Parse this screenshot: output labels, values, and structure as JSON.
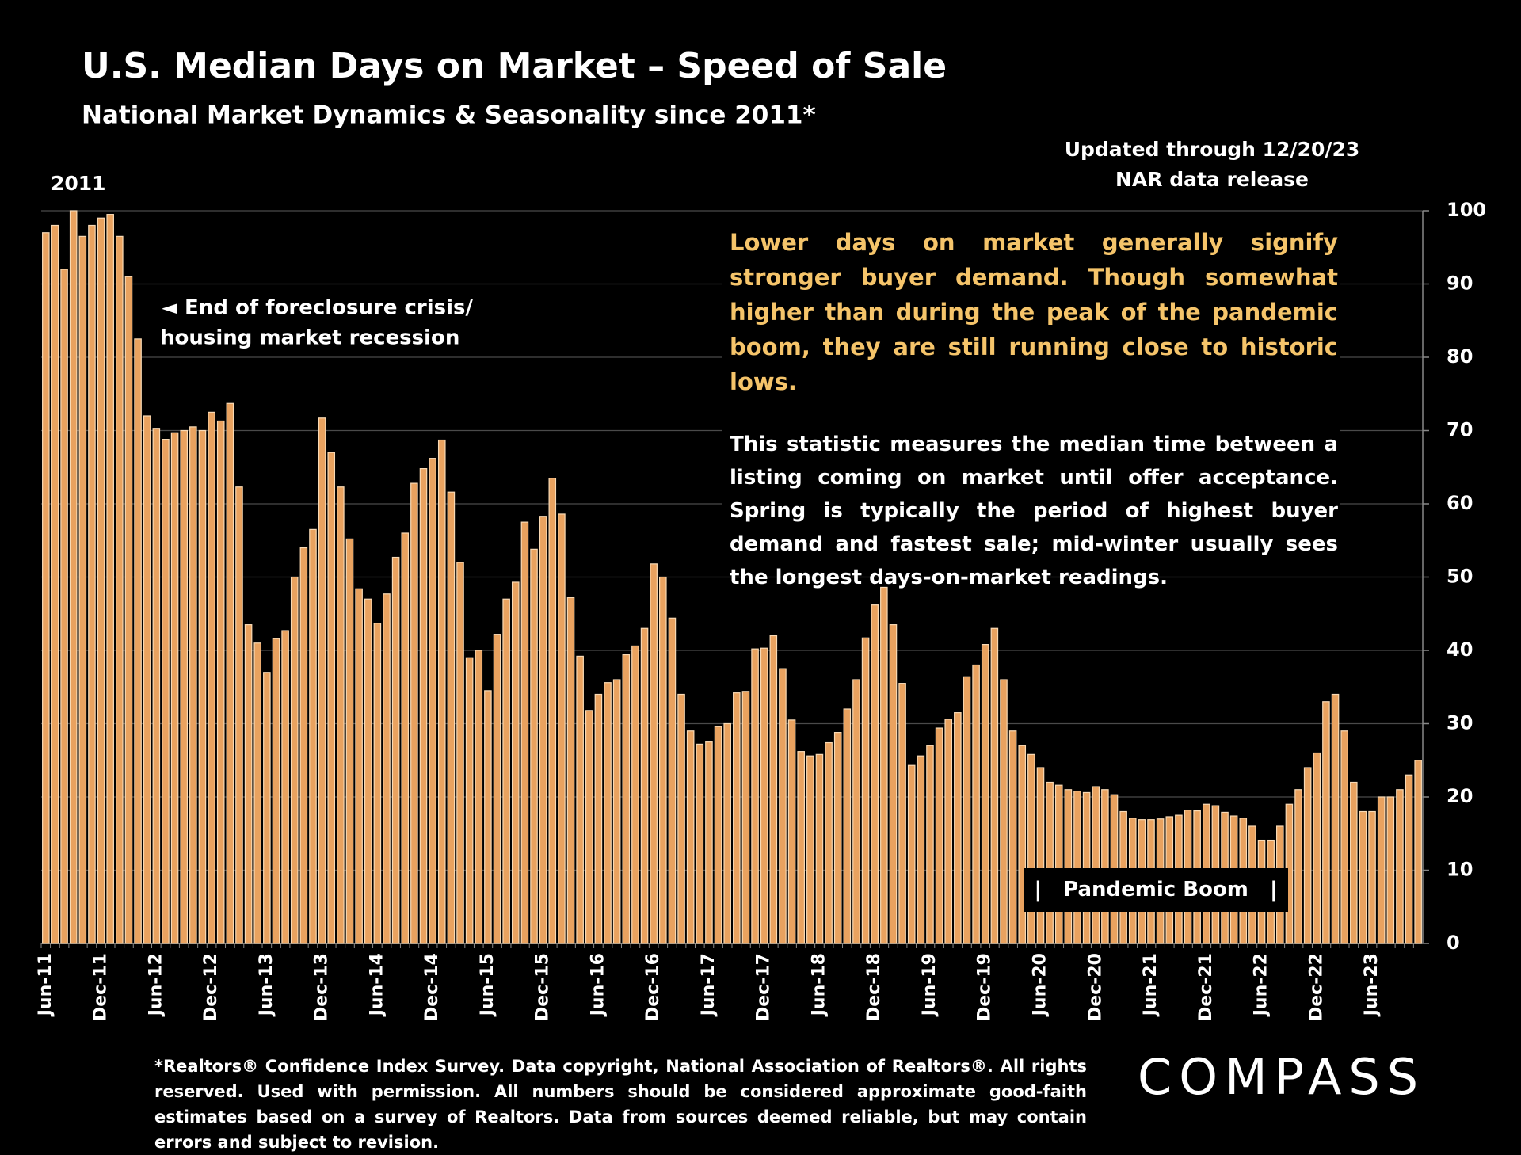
{
  "chart_data": {
    "type": "bar",
    "title": "U.S. Median Days on Market – Speed of Sale",
    "subtitle": "National Market Dynamics & Seasonality since 2011*",
    "updated": [
      "Updated through 12/20/23",
      "NAR data release"
    ],
    "start_year": "2011",
    "annotation": [
      "◄ End of foreclosure crisis/",
      "housing market recession"
    ],
    "highlight_note": "Lower days on market generally signify stronger buyer demand. Though somewhat higher than during the peak of the pandemic boom, they are still running close to historic lows.",
    "note": "This statistic measures the median time between a listing coming on market until offer acceptance. Spring is typically the period of highest buyer demand and fastest sale; mid-winter usually sees the longest days-on-market readings.",
    "period_label": "|   Pandemic Boom   |",
    "categories": [
      "Jun-11",
      null,
      null,
      null,
      null,
      null,
      "Dec-11",
      null,
      null,
      null,
      null,
      null,
      "Jun-12",
      null,
      null,
      null,
      null,
      null,
      "Dec-12",
      null,
      null,
      null,
      null,
      null,
      "Jun-13",
      null,
      null,
      null,
      null,
      null,
      "Dec-13",
      null,
      null,
      null,
      null,
      null,
      "Jun-14",
      null,
      null,
      null,
      null,
      null,
      "Dec-14",
      null,
      null,
      null,
      null,
      null,
      "Jun-15",
      null,
      null,
      null,
      null,
      null,
      "Dec-15",
      null,
      null,
      null,
      null,
      null,
      "Jun-16",
      null,
      null,
      null,
      null,
      null,
      "Dec-16",
      null,
      null,
      null,
      null,
      null,
      "Jun-17",
      null,
      null,
      null,
      null,
      null,
      "Dec-17",
      null,
      null,
      null,
      null,
      null,
      "Jun-18",
      null,
      null,
      null,
      null,
      null,
      "Dec-18",
      null,
      null,
      null,
      null,
      null,
      "Jun-19",
      null,
      null,
      null,
      null,
      null,
      "Dec-19",
      null,
      null,
      null,
      null,
      null,
      "Jun-20",
      null,
      null,
      null,
      null,
      null,
      "Dec-20",
      null,
      null,
      null,
      null,
      null,
      "Jun-21",
      null,
      null,
      null,
      null,
      null,
      "Dec-21",
      null,
      null,
      null,
      null,
      null,
      "Jun-22",
      null,
      null,
      null,
      null,
      null,
      "Dec-22",
      null,
      null,
      null,
      null,
      null,
      "Jun-23",
      null,
      null,
      null,
      null,
      null
    ],
    "values": [
      97,
      98,
      92,
      100,
      96.5,
      98,
      99,
      99.5,
      96.5,
      91,
      82.5,
      72,
      70.3,
      68.8,
      69.7,
      70,
      70.5,
      70,
      72.5,
      71.3,
      73.7,
      62.3,
      43.5,
      41,
      37,
      41.6,
      42.7,
      50,
      54,
      56.5,
      71.7,
      67,
      62.3,
      55.2,
      48.4,
      47,
      43.7,
      47.7,
      52.7,
      56,
      62.8,
      64.8,
      66.2,
      68.7,
      61.6,
      52,
      39,
      40,
      34.5,
      42.2,
      47,
      49.3,
      57.5,
      53.8,
      58.3,
      63.5,
      58.6,
      47.2,
      39.2,
      31.8,
      34,
      35.6,
      36,
      39.4,
      40.6,
      43,
      51.8,
      50,
      44.4,
      34,
      29,
      27.2,
      27.5,
      29.6,
      30,
      34.2,
      34.4,
      40.2,
      40.3,
      42,
      37.5,
      30.5,
      26.2,
      25.6,
      25.8,
      27.4,
      28.8,
      32,
      36,
      41.7,
      46.2,
      48.6,
      43.5,
      35.5,
      24.3,
      25.6,
      27,
      29.4,
      30.6,
      31.5,
      36.4,
      38,
      40.8,
      43,
      36,
      29,
      27,
      25.8,
      24,
      22,
      21.6,
      21,
      20.8,
      20.6,
      21.4,
      21,
      20.3,
      18,
      17.1,
      16.9,
      16.9,
      17,
      17.3,
      17.5,
      18.2,
      18.1,
      19,
      18.8,
      17.9,
      17.4,
      17.1,
      16,
      14.1,
      14.1,
      16,
      19,
      21,
      24,
      26,
      33,
      34,
      29,
      22,
      18,
      18,
      20,
      20,
      21,
      23,
      25
    ],
    "color": "#e9a25f",
    "ylim": [
      0,
      100
    ],
    "yticks": [
      0,
      10,
      20,
      30,
      40,
      50,
      60,
      70,
      80,
      90,
      100
    ],
    "grid": true
  },
  "footer": "*Realtors® Confidence Index Survey. Data copyright, National Association of Realtors®. All rights reserved. Used with permission. All numbers should be considered approximate good-faith estimates based on a survey of Realtors. Data from sources deemed reliable, but may contain errors and subject to revision.",
  "logo": "COMPASS"
}
